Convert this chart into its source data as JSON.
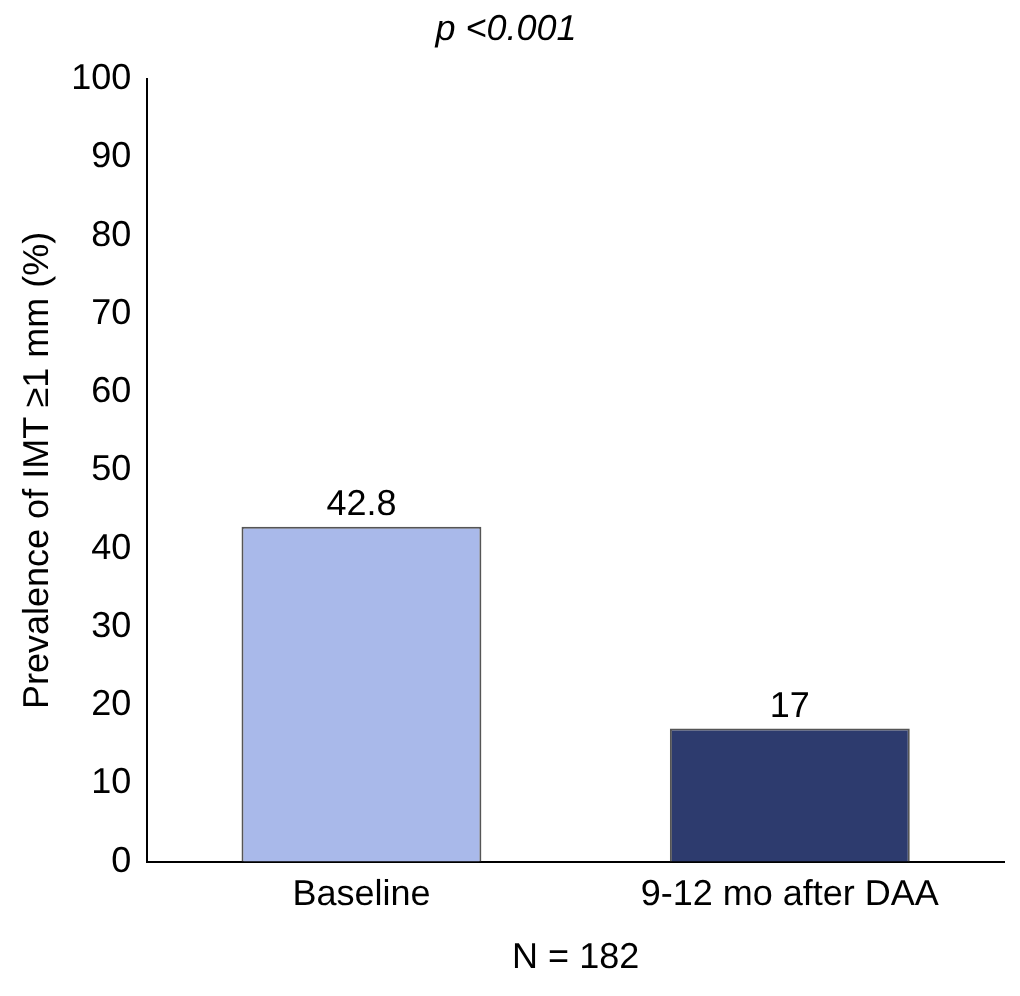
{
  "chart_data": {
    "type": "bar",
    "title": "p <0.001",
    "xlabel": "N = 182",
    "ylabel": "Prevalence of IMT ≥1 mm (%)",
    "categories": [
      "Baseline",
      "9-12 mo after DAA"
    ],
    "values": [
      42.8,
      17
    ],
    "colors": [
      "#a9b9ea",
      "#2d3b6e"
    ],
    "ylim": [
      0,
      100
    ],
    "yticks": [
      0,
      10,
      20,
      30,
      40,
      50,
      60,
      70,
      80,
      90,
      100
    ],
    "grid": false,
    "legend": false,
    "data_labels": true
  }
}
